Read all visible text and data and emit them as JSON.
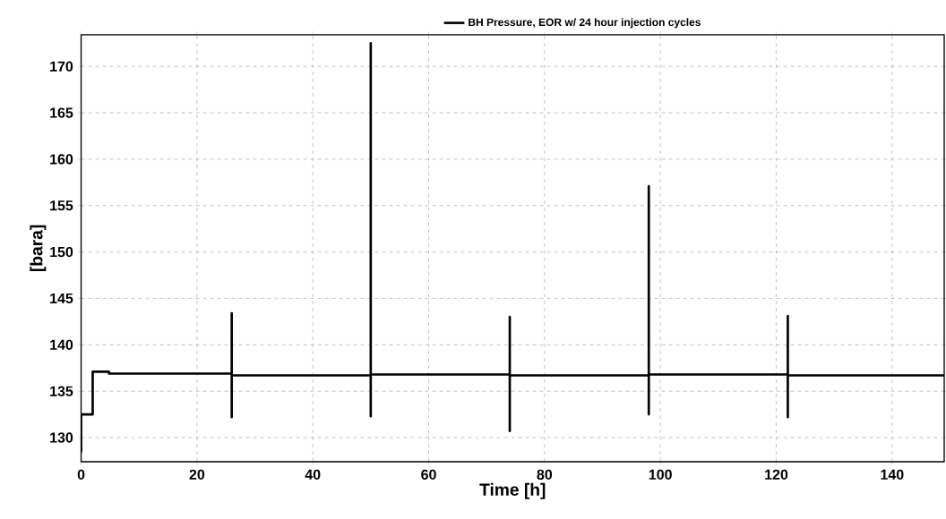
{
  "chart_data": {
    "type": "line",
    "xlabel": "Time [h]",
    "ylabel": "[bara]",
    "xlim": [
      0,
      149
    ],
    "ylim": [
      127.4,
      173.4
    ],
    "xticks": [
      0,
      20,
      40,
      60,
      80,
      100,
      120,
      140
    ],
    "yticks": [
      130,
      135,
      140,
      145,
      150,
      155,
      160,
      165,
      170
    ],
    "grid": true,
    "legend": "top",
    "line_style": "solid",
    "marker": "none",
    "series": [
      {
        "name": "BH Pressure, EOR w/ 24 hour injection cycles",
        "color": "#000000",
        "x": [
          0,
          0,
          2,
          2,
          4.8,
          4.8,
          26,
          26,
          26,
          26,
          50,
          50,
          50,
          50,
          74,
          74,
          74,
          74,
          98,
          98,
          98,
          98,
          122,
          122,
          122,
          122,
          149
        ],
        "values": [
          128.4,
          132.5,
          132.5,
          137.1,
          137.1,
          136.9,
          136.9,
          143.4,
          132.2,
          136.7,
          136.7,
          172.5,
          132.3,
          136.8,
          136.8,
          143.0,
          130.7,
          136.7,
          136.7,
          157.1,
          132.5,
          136.8,
          136.8,
          143.1,
          132.2,
          136.7,
          136.7
        ]
      }
    ]
  }
}
